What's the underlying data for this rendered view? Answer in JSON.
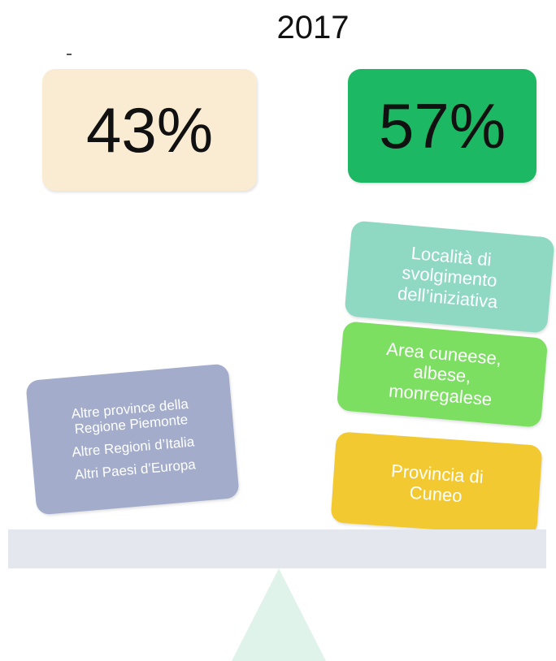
{
  "title": "2017",
  "left": {
    "share": "43%",
    "lines": [
      "Altre province della",
      "Regione Piemonte",
      "Altre Regioni d’Italia",
      "Altri Paesi d’Europa"
    ]
  },
  "right": {
    "share": "57%",
    "boxes": [
      [
        "Località di",
        "svolgimento",
        "dell’iniziativa"
      ],
      [
        "Area cuneese,",
        "albese,",
        "monregalese"
      ],
      [
        "Provincia di",
        "Cuneo"
      ]
    ]
  }
}
